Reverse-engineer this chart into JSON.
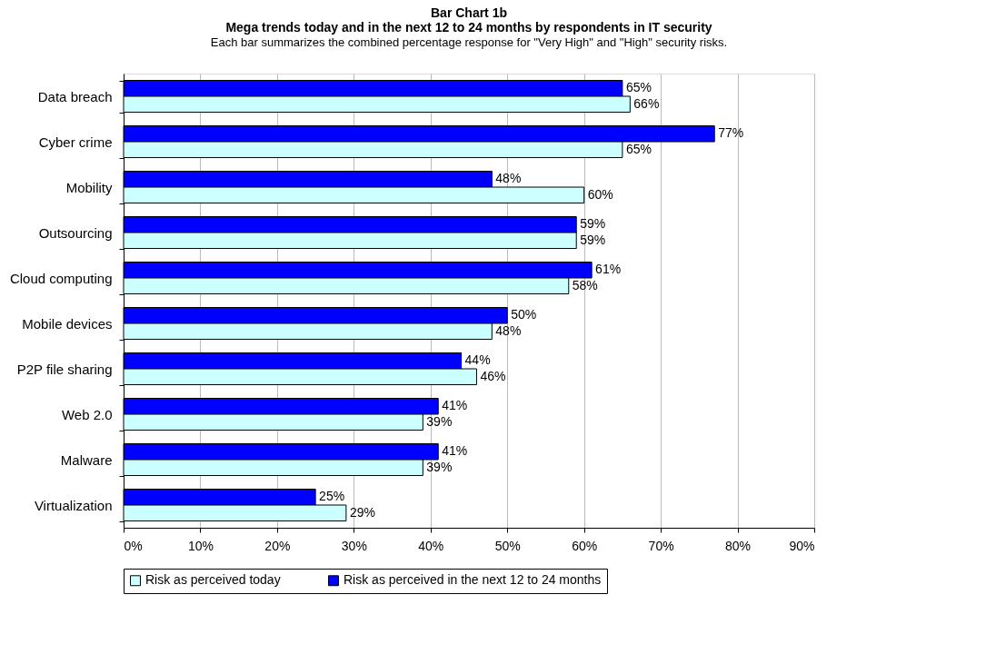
{
  "chart_data": {
    "type": "bar",
    "orientation": "horizontal",
    "title": "Bar Chart 1b\nMega trends today and in the next 12 to 24 months by respondents in IT security",
    "subtitle": "Each bar summarizes the combined percentage response for  \"Very High\" and \"High\" security risks.",
    "categories": [
      "Data breach",
      "Cyber crime",
      "Mobility",
      "Outsourcing",
      "Cloud computing",
      "Mobile devices",
      "P2P file sharing",
      "Web 2.0",
      "Malware",
      "Virtualization"
    ],
    "series": [
      {
        "name": "Risk as perceived in the next 12 to 24 months",
        "color": "#0000ff",
        "values": [
          65,
          77,
          48,
          59,
          61,
          50,
          44,
          41,
          41,
          25
        ],
        "value_labels": [
          "65%",
          "77%",
          "48%",
          "59%",
          "61%",
          "50%",
          "44%",
          "41%",
          "41%",
          "25%"
        ]
      },
      {
        "name": "Risk as perceived today",
        "color": "#ccffff",
        "values": [
          66,
          65,
          60,
          59,
          58,
          48,
          46,
          39,
          39,
          29
        ],
        "value_labels": [
          "66%",
          "65%",
          "60%",
          "59%",
          "58%",
          "48%",
          "46%",
          "39%",
          "39%",
          "29%"
        ]
      }
    ],
    "xlim": [
      0,
      90
    ],
    "xticks": [
      {
        "value": 0,
        "label": "0%"
      },
      {
        "value": 10,
        "label": "10%"
      },
      {
        "value": 20,
        "label": "20%"
      },
      {
        "value": 30,
        "label": "30%"
      },
      {
        "value": 40,
        "label": "40%"
      },
      {
        "value": 50,
        "label": "50%"
      },
      {
        "value": 60,
        "label": "60%"
      },
      {
        "value": 70,
        "label": "70%"
      },
      {
        "value": 80,
        "label": "80%"
      },
      {
        "value": 90,
        "label": "90%"
      }
    ],
    "grid": "x",
    "legend": "bottom"
  }
}
